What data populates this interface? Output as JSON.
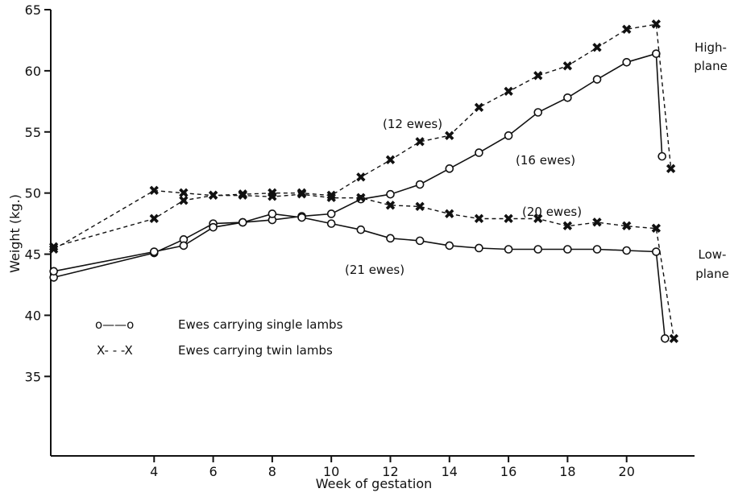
{
  "chart_data": {
    "type": "line",
    "xlabel": "Week of gestation",
    "ylabel": "Weight (kg.)",
    "xlim": [
      0.5,
      22.3
    ],
    "ylim": [
      28.5,
      65
    ],
    "x_ticks": [
      4,
      6,
      8,
      10,
      12,
      14,
      16,
      18,
      20
    ],
    "y_ticks": [
      35,
      40,
      45,
      50,
      55,
      60,
      65
    ],
    "grid": false,
    "legend_position": "middle-left",
    "series": [
      {
        "name": "Ewes carrying single lambs",
        "marker": "circle",
        "line": "solid",
        "plane": "High-plane",
        "points": [
          [
            0.6,
            43.1
          ],
          [
            4,
            45.1
          ],
          [
            5,
            46.2
          ],
          [
            6,
            47.5
          ],
          [
            7,
            47.6
          ],
          [
            8,
            47.8
          ],
          [
            9,
            48.1
          ],
          [
            10,
            48.3
          ],
          [
            11,
            49.5
          ],
          [
            12,
            49.9
          ],
          [
            13,
            50.7
          ],
          [
            14,
            52.0
          ],
          [
            15,
            53.3
          ],
          [
            16,
            54.7
          ],
          [
            17,
            56.6
          ],
          [
            18,
            57.8
          ],
          [
            19,
            59.3
          ],
          [
            20,
            60.7
          ],
          [
            21,
            61.4
          ],
          [
            21.2,
            53.0
          ]
        ]
      },
      {
        "name": "Ewes carrying twin lambs",
        "marker": "x",
        "line": "dashed",
        "plane": "High-plane",
        "points": [
          [
            0.6,
            45.6
          ],
          [
            4,
            47.9
          ],
          [
            5,
            49.4
          ],
          [
            6,
            49.8
          ],
          [
            7,
            49.9
          ],
          [
            8,
            50.0
          ],
          [
            9,
            50.0
          ],
          [
            10,
            49.8
          ],
          [
            11,
            51.3
          ],
          [
            12,
            52.7
          ],
          [
            13,
            54.2
          ],
          [
            14,
            54.7
          ],
          [
            15,
            57.0
          ],
          [
            16,
            58.3
          ],
          [
            17,
            59.6
          ],
          [
            18,
            60.4
          ],
          [
            19,
            61.9
          ],
          [
            20,
            63.4
          ],
          [
            21,
            63.8
          ],
          [
            21.5,
            52.0
          ]
        ]
      },
      {
        "name": "Ewes carrying single lambs",
        "marker": "circle",
        "line": "solid",
        "plane": "Low-plane",
        "points": [
          [
            0.6,
            43.6
          ],
          [
            4,
            45.2
          ],
          [
            5,
            45.7
          ],
          [
            6,
            47.2
          ],
          [
            7,
            47.6
          ],
          [
            8,
            48.3
          ],
          [
            9,
            48.0
          ],
          [
            10,
            47.5
          ],
          [
            11,
            47.0
          ],
          [
            12,
            46.3
          ],
          [
            13,
            46.1
          ],
          [
            14,
            45.7
          ],
          [
            15,
            45.5
          ],
          [
            16,
            45.4
          ],
          [
            17,
            45.4
          ],
          [
            18,
            45.4
          ],
          [
            19,
            45.4
          ],
          [
            20,
            45.3
          ],
          [
            21,
            45.2
          ],
          [
            21.3,
            38.1
          ]
        ]
      },
      {
        "name": "Ewes carrying twin lambs",
        "marker": "x",
        "line": "dashed",
        "plane": "Low-plane",
        "points": [
          [
            0.6,
            45.4
          ],
          [
            4,
            50.2
          ],
          [
            5,
            50.0
          ],
          [
            6,
            49.8
          ],
          [
            7,
            49.8
          ],
          [
            8,
            49.7
          ],
          [
            9,
            49.9
          ],
          [
            10,
            49.6
          ],
          [
            11,
            49.6
          ],
          [
            12,
            49.0
          ],
          [
            13,
            48.9
          ],
          [
            14,
            48.3
          ],
          [
            15,
            47.9
          ],
          [
            16,
            47.9
          ],
          [
            17,
            47.9
          ],
          [
            18,
            47.3
          ],
          [
            19,
            47.6
          ],
          [
            20,
            47.3
          ],
          [
            21,
            47.1
          ],
          [
            21.6,
            38.1
          ]
        ]
      }
    ],
    "annotations": {
      "high_plane": [
        "High-",
        "plane"
      ],
      "low_plane": [
        "Low-",
        "plane"
      ],
      "n_twin_high": "(12 ewes)",
      "n_single_high": "(16 ewes)",
      "n_twin_low": "(20 ewes)",
      "n_single_low": "(21 ewes)"
    },
    "legend": {
      "single_marker": "o——o",
      "single_label": "Ewes carrying single lambs",
      "twin_marker": "X- - -X",
      "twin_label": "Ewes carrying twin lambs"
    }
  }
}
